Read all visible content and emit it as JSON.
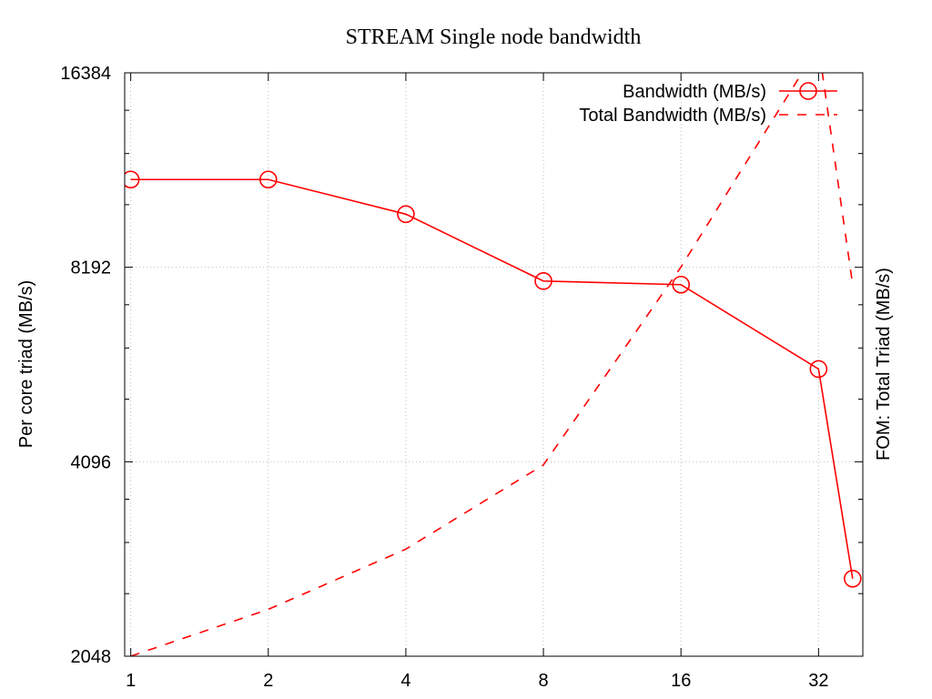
{
  "chart_data": {
    "type": "line",
    "title": "STREAM Single node bandwidth",
    "xlabel": "",
    "ylabel": "Per core triad (MB/s)",
    "y2label": "FOM: Total Triad (MB/s)",
    "xscale": "log2",
    "yscale": "log2",
    "xlim": [
      0.97,
      40
    ],
    "ylim": [
      2048,
      16384
    ],
    "x_ticks": [
      "1",
      "2",
      "4",
      "8",
      "16",
      "32"
    ],
    "y_ticks": [
      "2048",
      "4096",
      "8192",
      "16384"
    ],
    "grid": true,
    "legend_position": "top-right",
    "color": "#ff0000",
    "series": [
      {
        "name": "Bandwidth (MB/s)",
        "line_style": "solid",
        "marker": "circle",
        "x": [
          1,
          2,
          4,
          8,
          16,
          32,
          38
        ],
        "y": [
          11200,
          11200,
          9900,
          7800,
          7700,
          5700,
          2700
        ]
      },
      {
        "name": "Total Bandwidth (MB/s)",
        "line_style": "dashed",
        "marker": "none",
        "x": [
          1,
          2,
          4,
          8,
          16,
          32,
          38
        ],
        "y": [
          2048,
          2420,
          3000,
          4050,
          8200,
          18000,
          7700
        ]
      }
    ]
  }
}
